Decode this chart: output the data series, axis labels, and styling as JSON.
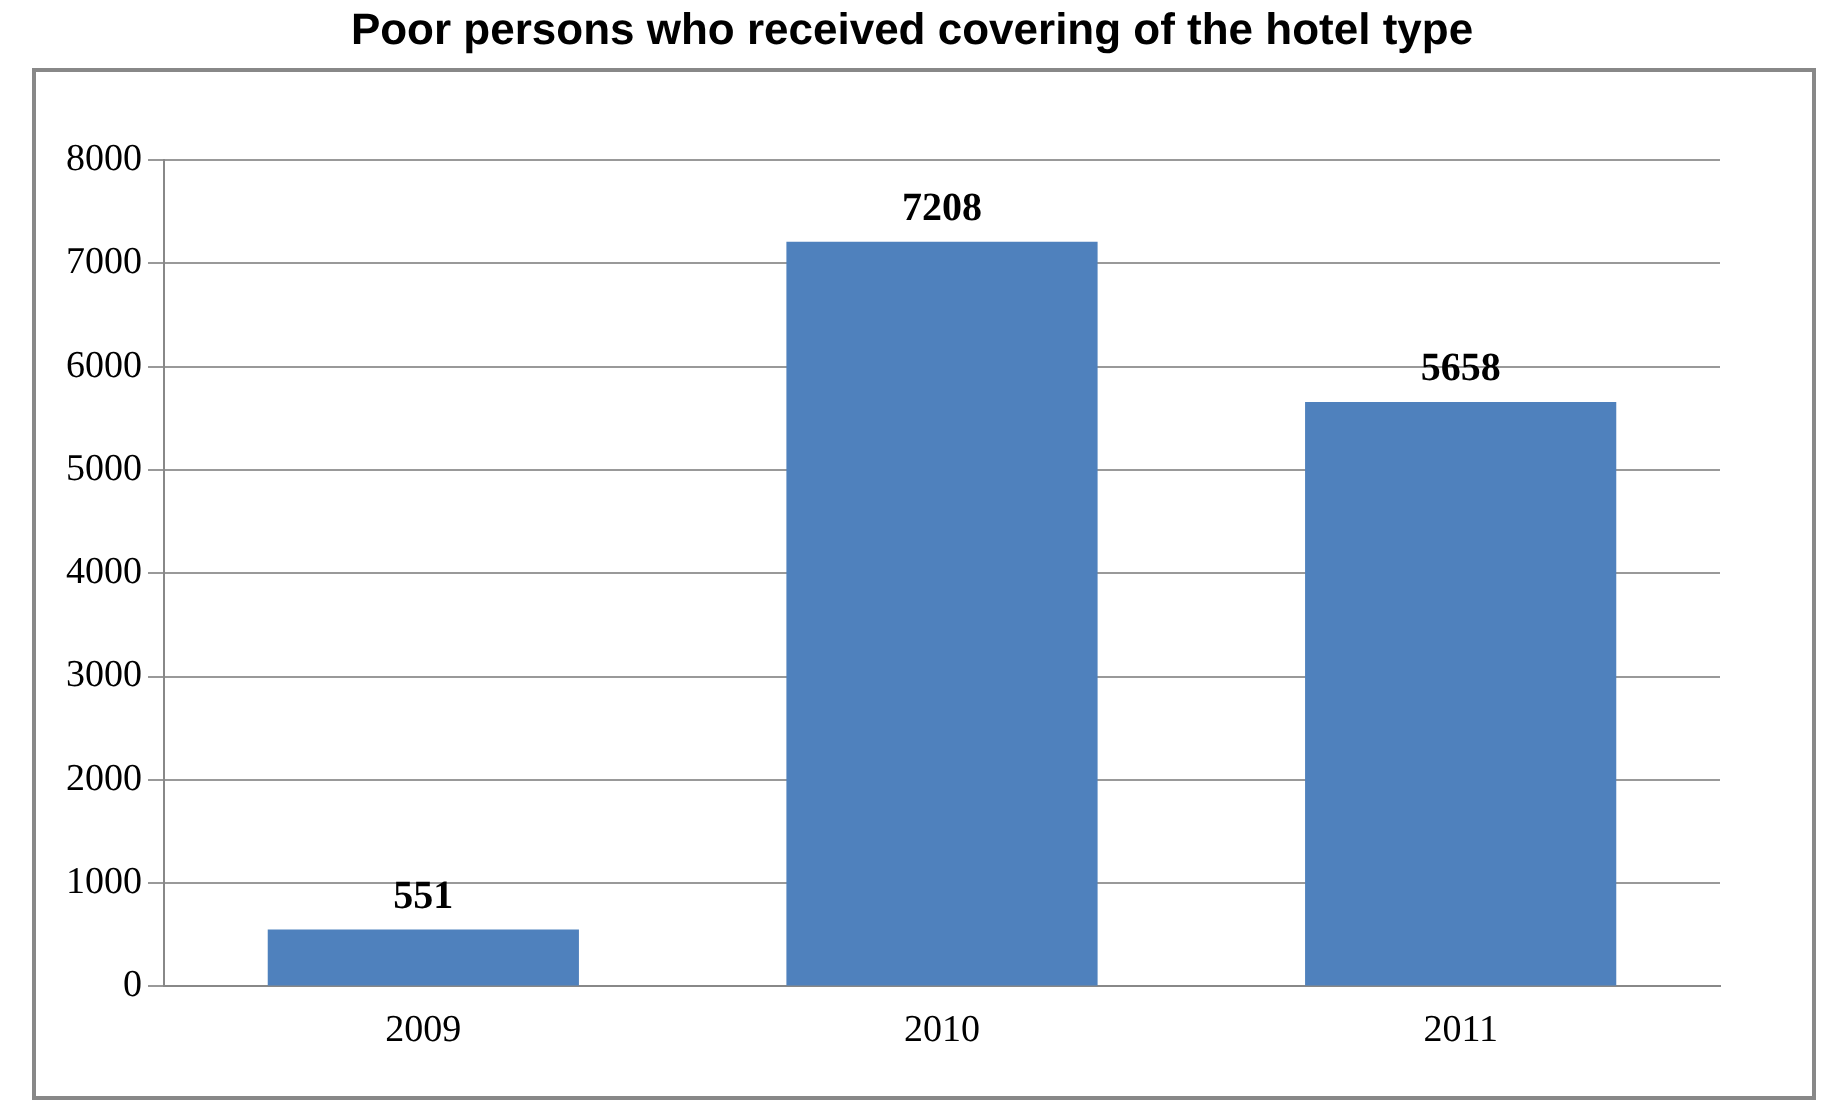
{
  "chart_data": {
    "type": "bar",
    "title": "Poor persons who received covering of the hotel type",
    "categories": [
      "2009",
      "2010",
      "2011"
    ],
    "values": [
      551,
      7208,
      5658
    ],
    "color": "#4f81bd",
    "ylim": [
      0,
      8000
    ],
    "yticks": [
      0,
      1000,
      2000,
      3000,
      4000,
      5000,
      6000,
      7000,
      8000
    ],
    "grid": "y",
    "data_labels": true,
    "legend": false
  }
}
